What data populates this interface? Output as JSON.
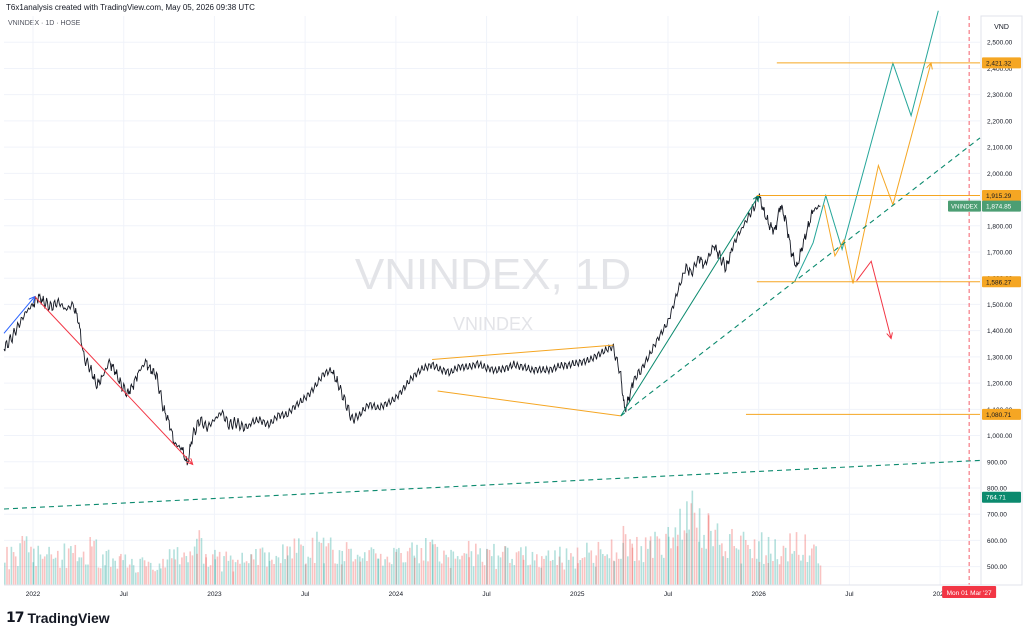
{
  "header": {
    "caption": "T6x1analysis created with TradingView.com, May 05, 2026 09:38 UTC"
  },
  "chart_label": "VNINDEX · 1D · HOSE",
  "watermark": {
    "title": "VNINDEX, 1D",
    "subtitle": "VNINDEX"
  },
  "footer": {
    "logo_text": "TradingView"
  },
  "chart_data": {
    "type": "line",
    "title": "VNINDEX · 1D · HOSE",
    "currency": "VND",
    "ylim": [
      430,
      2600
    ],
    "y_ticks": [
      500,
      600,
      700,
      800,
      900,
      1000,
      1100,
      1200,
      1300,
      1400,
      1500,
      1600,
      1700,
      1800,
      1900,
      2000,
      2100,
      2200,
      2300,
      2400,
      2500
    ],
    "y_tick_labels": [
      "500.00",
      "600.00",
      "700.00",
      "800.00",
      "900.00",
      "1,000.00",
      "1,100.00",
      "1,200.00",
      "1,300.00",
      "1,400.00",
      "1,500.00",
      "1,600.00",
      "1,700.00",
      "1,800.00",
      "1,900.00",
      "2,000.00",
      "2,100.00",
      "2,200.00",
      "2,300.00",
      "2,400.00",
      "2,500.00"
    ],
    "x_ticks": [
      {
        "label": "2022",
        "t": 2022.0
      },
      {
        "label": "Jul",
        "t": 2022.5
      },
      {
        "label": "2023",
        "t": 2023.0
      },
      {
        "label": "Jul",
        "t": 2023.5
      },
      {
        "label": "2024",
        "t": 2024.0
      },
      {
        "label": "Jul",
        "t": 2024.5
      },
      {
        "label": "2025",
        "t": 2025.0
      },
      {
        "label": "Jul",
        "t": 2025.5
      },
      {
        "label": "2026",
        "t": 2026.0
      },
      {
        "label": "Jul",
        "t": 2026.5
      },
      {
        "label": "2027",
        "t": 2027.0
      }
    ],
    "x_range": [
      2021.84,
      2027.22
    ],
    "price_series": [
      [
        2021.84,
        1330
      ],
      [
        2021.88,
        1370
      ],
      [
        2021.92,
        1420
      ],
      [
        2021.96,
        1470
      ],
      [
        2022.0,
        1500
      ],
      [
        2022.03,
        1530
      ],
      [
        2022.06,
        1510
      ],
      [
        2022.1,
        1490
      ],
      [
        2022.14,
        1510
      ],
      [
        2022.18,
        1480
      ],
      [
        2022.22,
        1500
      ],
      [
        2022.25,
        1440
      ],
      [
        2022.28,
        1300
      ],
      [
        2022.32,
        1250
      ],
      [
        2022.35,
        1190
      ],
      [
        2022.38,
        1220
      ],
      [
        2022.42,
        1280
      ],
      [
        2022.45,
        1250
      ],
      [
        2022.48,
        1200
      ],
      [
        2022.52,
        1160
      ],
      [
        2022.55,
        1190
      ],
      [
        2022.58,
        1240
      ],
      [
        2022.62,
        1280
      ],
      [
        2022.65,
        1250
      ],
      [
        2022.68,
        1230
      ],
      [
        2022.72,
        1100
      ],
      [
        2022.75,
        1050
      ],
      [
        2022.78,
        970
      ],
      [
        2022.82,
        950
      ],
      [
        2022.85,
        890
      ],
      [
        2022.88,
        1000
      ],
      [
        2022.92,
        1060
      ],
      [
        2022.96,
        1030
      ],
      [
        2023.0,
        1060
      ],
      [
        2023.04,
        1090
      ],
      [
        2023.08,
        1040
      ],
      [
        2023.12,
        1050
      ],
      [
        2023.16,
        1030
      ],
      [
        2023.2,
        1040
      ],
      [
        2023.25,
        1060
      ],
      [
        2023.3,
        1050
      ],
      [
        2023.35,
        1080
      ],
      [
        2023.4,
        1070
      ],
      [
        2023.45,
        1110
      ],
      [
        2023.5,
        1150
      ],
      [
        2023.55,
        1190
      ],
      [
        2023.6,
        1230
      ],
      [
        2023.65,
        1240
      ],
      [
        2023.68,
        1200
      ],
      [
        2023.72,
        1130
      ],
      [
        2023.76,
        1060
      ],
      [
        2023.8,
        1080
      ],
      [
        2023.85,
        1110
      ],
      [
        2023.9,
        1100
      ],
      [
        2023.95,
        1130
      ],
      [
        2024.0,
        1150
      ],
      [
        2024.05,
        1180
      ],
      [
        2024.1,
        1220
      ],
      [
        2024.15,
        1260
      ],
      [
        2024.2,
        1280
      ],
      [
        2024.25,
        1250
      ],
      [
        2024.3,
        1230
      ],
      [
        2024.35,
        1260
      ],
      [
        2024.4,
        1270
      ],
      [
        2024.45,
        1280
      ],
      [
        2024.5,
        1250
      ],
      [
        2024.55,
        1240
      ],
      [
        2024.6,
        1260
      ],
      [
        2024.65,
        1280
      ],
      [
        2024.7,
        1260
      ],
      [
        2024.75,
        1240
      ],
      [
        2024.8,
        1250
      ],
      [
        2024.85,
        1260
      ],
      [
        2024.9,
        1270
      ],
      [
        2024.95,
        1260
      ],
      [
        2025.0,
        1270
      ],
      [
        2025.05,
        1290
      ],
      [
        2025.1,
        1310
      ],
      [
        2025.15,
        1320
      ],
      [
        2025.2,
        1330
      ],
      [
        2025.24,
        1230
      ],
      [
        2025.26,
        1100
      ],
      [
        2025.28,
        1130
      ],
      [
        2025.31,
        1210
      ],
      [
        2025.35,
        1250
      ],
      [
        2025.4,
        1300
      ],
      [
        2025.45,
        1370
      ],
      [
        2025.5,
        1440
      ],
      [
        2025.55,
        1550
      ],
      [
        2025.6,
        1640
      ],
      [
        2025.63,
        1620
      ],
      [
        2025.67,
        1680
      ],
      [
        2025.7,
        1650
      ],
      [
        2025.75,
        1730
      ],
      [
        2025.78,
        1690
      ],
      [
        2025.82,
        1640
      ],
      [
        2025.85,
        1700
      ],
      [
        2025.9,
        1780
      ],
      [
        2025.94,
        1830
      ],
      [
        2025.98,
        1880
      ],
      [
        2026.0,
        1920
      ],
      [
        2026.03,
        1850
      ],
      [
        2026.06,
        1800
      ],
      [
        2026.09,
        1780
      ],
      [
        2026.12,
        1880
      ],
      [
        2026.15,
        1820
      ],
      [
        2026.18,
        1700
      ],
      [
        2026.21,
        1640
      ],
      [
        2026.24,
        1720
      ],
      [
        2026.27,
        1790
      ],
      [
        2026.3,
        1860
      ],
      [
        2026.34,
        1874.85
      ]
    ],
    "volume_series": [
      [
        2021.84,
        560
      ],
      [
        2021.9,
        600
      ],
      [
        2021.96,
        640
      ],
      [
        2022.0,
        620
      ],
      [
        2022.06,
        580
      ],
      [
        2022.12,
        560
      ],
      [
        2022.18,
        600
      ],
      [
        2022.25,
        580
      ],
      [
        2022.32,
        640
      ],
      [
        2022.4,
        560
      ],
      [
        2022.48,
        540
      ],
      [
        2022.55,
        530
      ],
      [
        2022.62,
        520
      ],
      [
        2022.7,
        540
      ],
      [
        2022.78,
        600
      ],
      [
        2022.85,
        640
      ],
      [
        2022.9,
        680
      ],
      [
        2022.95,
        580
      ],
      [
        2023.0,
        560
      ],
      [
        2023.1,
        540
      ],
      [
        2023.2,
        560
      ],
      [
        2023.3,
        580
      ],
      [
        2023.4,
        600
      ],
      [
        2023.5,
        640
      ],
      [
        2023.6,
        660
      ],
      [
        2023.7,
        620
      ],
      [
        2023.8,
        580
      ],
      [
        2023.9,
        560
      ],
      [
        2024.0,
        570
      ],
      [
        2024.1,
        600
      ],
      [
        2024.2,
        620
      ],
      [
        2024.3,
        590
      ],
      [
        2024.4,
        600
      ],
      [
        2024.5,
        580
      ],
      [
        2024.6,
        590
      ],
      [
        2024.7,
        570
      ],
      [
        2024.8,
        580
      ],
      [
        2024.9,
        570
      ],
      [
        2025.0,
        580
      ],
      [
        2025.1,
        600
      ],
      [
        2025.2,
        620
      ],
      [
        2025.25,
        700
      ],
      [
        2025.3,
        640
      ],
      [
        2025.4,
        660
      ],
      [
        2025.5,
        700
      ],
      [
        2025.55,
        760
      ],
      [
        2025.6,
        860
      ],
      [
        2025.63,
        940
      ],
      [
        2025.67,
        820
      ],
      [
        2025.72,
        740
      ],
      [
        2025.8,
        680
      ],
      [
        2025.9,
        640
      ],
      [
        2026.0,
        660
      ],
      [
        2026.05,
        620
      ],
      [
        2026.12,
        640
      ],
      [
        2026.18,
        680
      ],
      [
        2026.24,
        640
      ],
      [
        2026.3,
        600
      ],
      [
        2026.34,
        560
      ]
    ],
    "price_labels": [
      {
        "label": "2,421.32",
        "value": 2421.32,
        "color": "#f5a623"
      },
      {
        "label": "1,915.29",
        "value": 1915.29,
        "color": "#f5a623"
      },
      {
        "label": "1,874.85",
        "value": 1874.85,
        "color": "#4c9e73",
        "ticker": "VNINDEX"
      },
      {
        "label": "1,586.27",
        "value": 1586.27,
        "color": "#f5a623"
      },
      {
        "label": "1,080.71",
        "value": 1080.71,
        "color": "#f5a623"
      },
      {
        "label": "764.71",
        "value": 764.71,
        "color": "#0b8a6e"
      }
    ],
    "date_flag": {
      "label": "Mon 01 Mar '27",
      "t": 2027.16,
      "color": "#f23645"
    },
    "horizontal_levels": [
      {
        "value": 2421.32,
        "t_start": 2026.1,
        "t_end": 2027.22,
        "color": "#f5a623"
      },
      {
        "value": 1915.29,
        "t_start": 2025.99,
        "t_end": 2027.22,
        "color": "#f5a623"
      },
      {
        "value": 1586.27,
        "t_start": 2025.99,
        "t_end": 2027.22,
        "color": "#f5a623"
      },
      {
        "value": 1080.71,
        "t_start": 2025.93,
        "t_end": 2027.22,
        "color": "#f5a623"
      }
    ],
    "annotations": [
      {
        "kind": "arrow",
        "color": "#2962ff",
        "points": [
          [
            2021.84,
            1390
          ],
          [
            2022.01,
            1530
          ]
        ]
      },
      {
        "kind": "arrow",
        "color": "#f23645",
        "points": [
          [
            2022.01,
            1530
          ],
          [
            2022.88,
            890
          ]
        ]
      },
      {
        "kind": "line",
        "color": "#f5a623",
        "points": [
          [
            2024.2,
            1290
          ],
          [
            2025.2,
            1345
          ]
        ]
      },
      {
        "kind": "line",
        "color": "#f5a623",
        "points": [
          [
            2024.23,
            1170
          ],
          [
            2025.24,
            1075
          ]
        ]
      },
      {
        "kind": "arrow",
        "color": "#0b8a6e",
        "points": [
          [
            2025.24,
            1075
          ],
          [
            2026.0,
            1915
          ]
        ]
      },
      {
        "kind": "polyline",
        "color": "#26a69a",
        "points": [
          [
            2026.2,
            1590
          ],
          [
            2026.3,
            1735
          ],
          [
            2026.37,
            1915
          ],
          [
            2026.46,
            1710
          ],
          [
            2026.74,
            2420
          ],
          [
            2026.84,
            2220
          ],
          [
            2026.99,
            2620
          ]
        ]
      },
      {
        "kind": "polyline",
        "color": "#f5a623",
        "points": [
          [
            2026.36,
            1880
          ],
          [
            2026.42,
            1685
          ],
          [
            2026.47,
            1745
          ],
          [
            2026.52,
            1580
          ],
          [
            2026.66,
            2030
          ],
          [
            2026.74,
            1880
          ],
          [
            2026.95,
            2421.32
          ]
        ],
        "arrow": true
      },
      {
        "kind": "arrow",
        "color": "#f23645",
        "points": [
          [
            2026.54,
            1590
          ],
          [
            2026.62,
            1665
          ],
          [
            2026.73,
            1370
          ]
        ]
      },
      {
        "kind": "dashed",
        "color": "#0b8a6e",
        "points": [
          [
            2025.24,
            1075
          ],
          [
            2027.22,
            2135
          ]
        ]
      },
      {
        "kind": "dashed",
        "color": "#0b8a6e",
        "points": [
          [
            2021.84,
            720
          ],
          [
            2027.22,
            905
          ]
        ]
      }
    ]
  }
}
